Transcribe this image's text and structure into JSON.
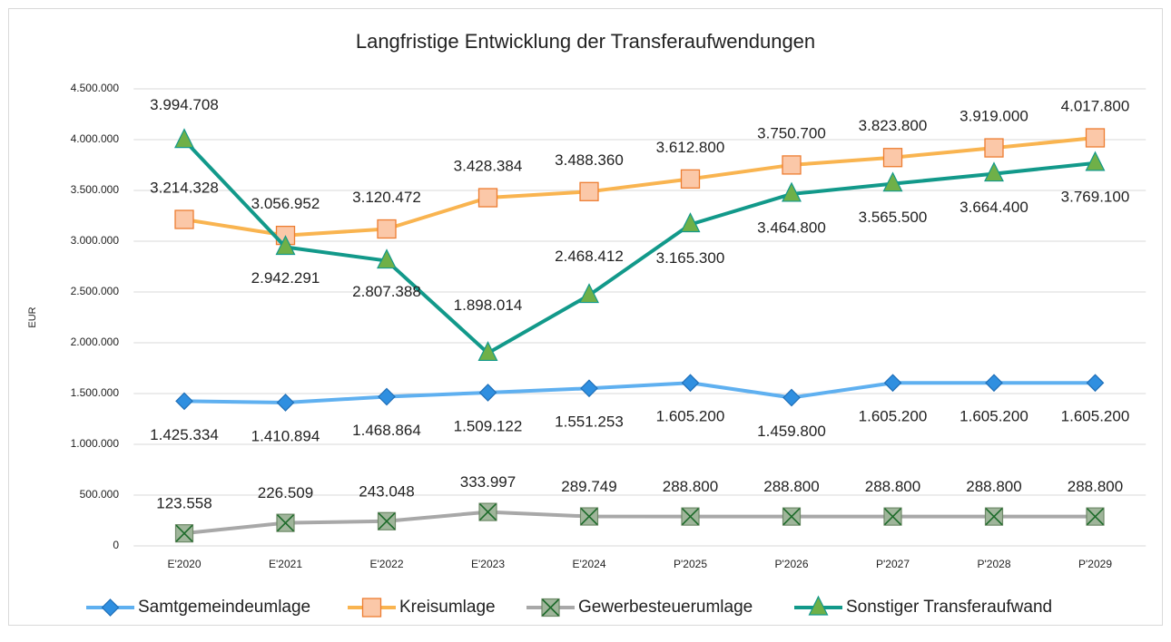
{
  "chart_data": {
    "type": "line",
    "title": "Langfristige Entwicklung der Transferaufwendungen",
    "ylabel": "EUR",
    "categories": [
      "E'2020",
      "E'2021",
      "E'2022",
      "E'2023",
      "E'2024",
      "P'2025",
      "P'2026",
      "P'2027",
      "P'2028",
      "P'2029"
    ],
    "ylim": [
      0,
      4500000
    ],
    "yticks": [
      0,
      {
        "value": 500000,
        "label": "500.000"
      },
      {
        "value": 1000000,
        "label": "1.000.000"
      },
      {
        "value": 1500000,
        "label": "1.500.000"
      },
      {
        "value": 2000000,
        "label": "2.000.000"
      },
      {
        "value": 2500000,
        "label": "2.500.000"
      },
      {
        "value": 3000000,
        "label": "3.000.000"
      },
      {
        "value": 3500000,
        "label": "3.500.000"
      },
      {
        "value": 4000000,
        "label": "4.000.000"
      },
      {
        "value": 4500000,
        "label": "4.500.000"
      }
    ],
    "grid": true,
    "legend": "bottom",
    "series": [
      {
        "name": "Samtgemeindeumlage",
        "color": "#5fb0f0",
        "marker": "diamond",
        "values": [
          1425334,
          1410894,
          1468864,
          1509122,
          1551253,
          1605200,
          1459800,
          1605200,
          1605200,
          1605200
        ],
        "value_labels": [
          "1.425.334",
          "1.410.894",
          "1.468.864",
          "1.509.122",
          "1.551.253",
          "1.605.200",
          "1.459.800",
          "1.605.200",
          "1.605.200",
          "1.605.200"
        ]
      },
      {
        "name": "Kreisumlage",
        "color": "#f9b450",
        "marker": "square",
        "values": [
          3214328,
          3056952,
          3120472,
          3428384,
          3488360,
          3612800,
          3750700,
          3823800,
          3919000,
          4017800
        ],
        "value_labels": [
          "3.214.328",
          "3.056.952",
          "3.120.472",
          "3.428.384",
          "3.488.360",
          "3.612.800",
          "3.750.700",
          "3.823.800",
          "3.919.000",
          "4.017.800"
        ]
      },
      {
        "name": "Gewerbesteuerumlage",
        "color": "#a8a8a8",
        "marker": "xsquare",
        "values": [
          123558,
          226509,
          243048,
          333997,
          289749,
          288800,
          288800,
          288800,
          288800,
          288800
        ],
        "value_labels": [
          "123.558",
          "226.509",
          "243.048",
          "333.997",
          "289.749",
          "288.800",
          "288.800",
          "288.800",
          "288.800",
          "288.800"
        ]
      },
      {
        "name": "Sonstiger Transferaufwand",
        "color": "#12998a",
        "marker": "triangle",
        "values": [
          3994708,
          2942291,
          2807388,
          1898014,
          2468412,
          3165300,
          3464800,
          3565500,
          3664400,
          3769100
        ],
        "value_labels": [
          "3.994.708",
          "2.942.291",
          "2.807.388",
          "1.898.014",
          "2.468.412",
          "3.165.300",
          "3.464.800",
          "3.565.500",
          "3.664.400",
          "3.769.100"
        ]
      }
    ]
  }
}
